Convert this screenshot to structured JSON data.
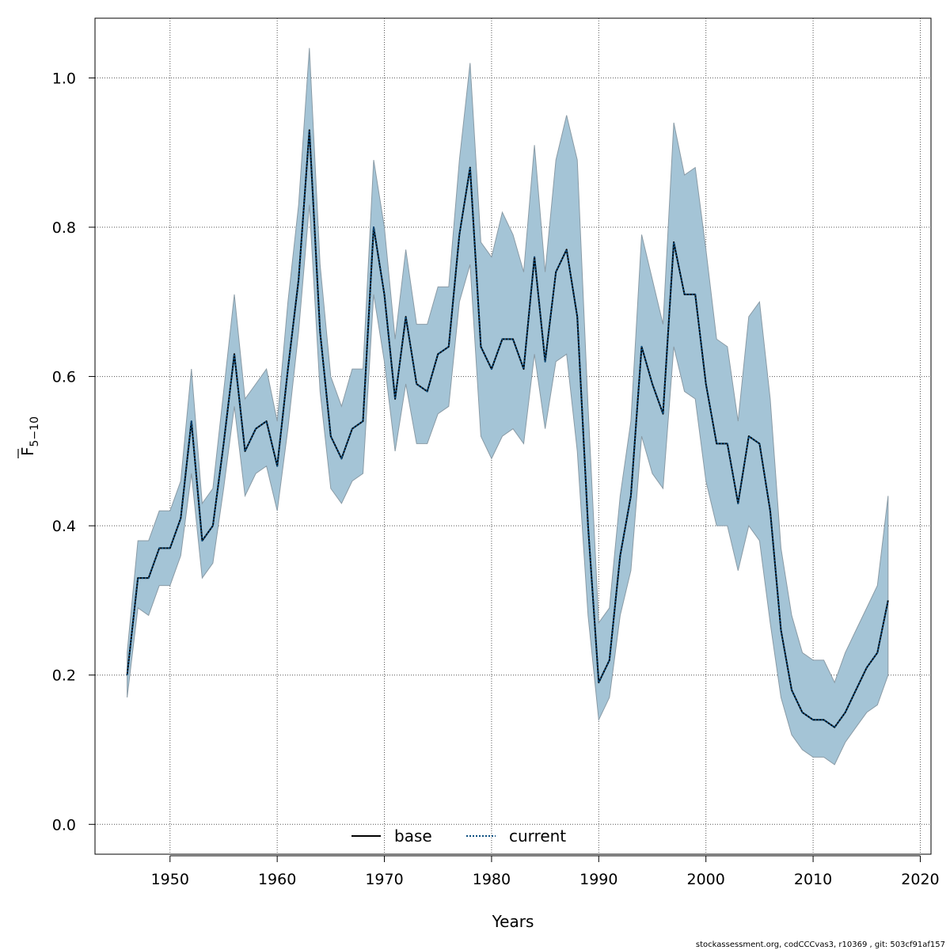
{
  "chart_data": {
    "type": "line",
    "xlabel": "Years",
    "ylabel_main": "F",
    "ylabel_subscript": "5−10",
    "xlim": [
      1943,
      2021
    ],
    "ylim": [
      -0.04,
      1.08
    ],
    "xticks": [
      1950,
      1960,
      1970,
      1980,
      1990,
      2000,
      2010,
      2020
    ],
    "xtick_labels": [
      "1950",
      "1960",
      "1970",
      "1980",
      "1990",
      "2000",
      "2010",
      "2020"
    ],
    "yticks": [
      0.0,
      0.2,
      0.4,
      0.6,
      0.8,
      1.0
    ],
    "ytick_labels": [
      "0.0",
      "0.2",
      "0.4",
      "0.6",
      "0.8",
      "1.0"
    ],
    "grid": true,
    "legend_position": "bottom-center",
    "colors": {
      "band_fill": "#a4c4d6",
      "band_stroke": "#8a9ba6",
      "base_line": "#000000",
      "current_line": "#0a4d80",
      "grid": "#555555"
    },
    "years": [
      1946,
      1947,
      1948,
      1949,
      1950,
      1951,
      1952,
      1953,
      1954,
      1955,
      1956,
      1957,
      1958,
      1959,
      1960,
      1961,
      1962,
      1963,
      1964,
      1965,
      1966,
      1967,
      1968,
      1969,
      1970,
      1971,
      1972,
      1973,
      1974,
      1975,
      1976,
      1977,
      1978,
      1979,
      1980,
      1981,
      1982,
      1983,
      1984,
      1985,
      1986,
      1987,
      1988,
      1989,
      1990,
      1991,
      1992,
      1993,
      1994,
      1995,
      1996,
      1997,
      1998,
      1999,
      2000,
      2001,
      2002,
      2003,
      2004,
      2005,
      2006,
      2007,
      2008,
      2009,
      2010,
      2011,
      2012,
      2013,
      2014,
      2015,
      2016,
      2017
    ],
    "series": [
      {
        "name": "base",
        "style": "solid",
        "values": [
          0.2,
          0.33,
          0.33,
          0.37,
          0.37,
          0.41,
          0.54,
          0.38,
          0.4,
          0.51,
          0.63,
          0.5,
          0.53,
          0.54,
          0.48,
          0.61,
          0.73,
          0.93,
          0.66,
          0.52,
          0.49,
          0.53,
          0.54,
          0.8,
          0.71,
          0.57,
          0.68,
          0.59,
          0.58,
          0.63,
          0.64,
          0.79,
          0.88,
          0.64,
          0.61,
          0.65,
          0.65,
          0.61,
          0.76,
          0.62,
          0.74,
          0.77,
          0.68,
          0.4,
          0.19,
          0.22,
          0.36,
          0.44,
          0.64,
          0.59,
          0.55,
          0.78,
          0.71,
          0.71,
          0.59,
          0.51,
          0.51,
          0.43,
          0.52,
          0.51,
          0.42,
          0.26,
          0.18,
          0.15,
          0.14,
          0.14,
          0.13,
          0.15,
          0.18,
          0.21,
          0.23,
          0.3
        ]
      },
      {
        "name": "current",
        "style": "dotted",
        "values": [
          0.2,
          0.33,
          0.33,
          0.37,
          0.37,
          0.41,
          0.54,
          0.38,
          0.4,
          0.51,
          0.63,
          0.5,
          0.53,
          0.54,
          0.48,
          0.61,
          0.73,
          0.93,
          0.66,
          0.52,
          0.49,
          0.53,
          0.54,
          0.8,
          0.71,
          0.57,
          0.68,
          0.59,
          0.58,
          0.63,
          0.64,
          0.79,
          0.88,
          0.64,
          0.61,
          0.65,
          0.65,
          0.61,
          0.76,
          0.62,
          0.74,
          0.77,
          0.68,
          0.4,
          0.19,
          0.22,
          0.36,
          0.44,
          0.64,
          0.59,
          0.55,
          0.78,
          0.71,
          0.71,
          0.59,
          0.51,
          0.51,
          0.43,
          0.52,
          0.51,
          0.42,
          0.26,
          0.18,
          0.15,
          0.14,
          0.14,
          0.13,
          0.15,
          0.18,
          0.21,
          0.23,
          0.3
        ]
      }
    ],
    "band": {
      "lower": [
        0.17,
        0.29,
        0.28,
        0.32,
        0.32,
        0.36,
        0.47,
        0.33,
        0.35,
        0.45,
        0.56,
        0.44,
        0.47,
        0.48,
        0.42,
        0.53,
        0.66,
        0.83,
        0.58,
        0.45,
        0.43,
        0.46,
        0.47,
        0.71,
        0.62,
        0.5,
        0.59,
        0.51,
        0.51,
        0.55,
        0.56,
        0.7,
        0.75,
        0.52,
        0.49,
        0.52,
        0.53,
        0.51,
        0.63,
        0.53,
        0.62,
        0.63,
        0.5,
        0.28,
        0.14,
        0.17,
        0.28,
        0.34,
        0.52,
        0.47,
        0.45,
        0.64,
        0.58,
        0.57,
        0.46,
        0.4,
        0.4,
        0.34,
        0.4,
        0.38,
        0.27,
        0.17,
        0.12,
        0.1,
        0.09,
        0.09,
        0.08,
        0.11,
        0.13,
        0.15,
        0.16,
        0.2
      ],
      "upper": [
        0.23,
        0.38,
        0.38,
        0.42,
        0.42,
        0.46,
        0.61,
        0.43,
        0.45,
        0.58,
        0.71,
        0.57,
        0.59,
        0.61,
        0.54,
        0.7,
        0.83,
        1.04,
        0.75,
        0.6,
        0.56,
        0.61,
        0.61,
        0.89,
        0.8,
        0.65,
        0.77,
        0.67,
        0.67,
        0.72,
        0.72,
        0.89,
        1.02,
        0.78,
        0.76,
        0.82,
        0.79,
        0.74,
        0.91,
        0.74,
        0.89,
        0.95,
        0.89,
        0.56,
        0.27,
        0.29,
        0.44,
        0.54,
        0.79,
        0.73,
        0.67,
        0.94,
        0.87,
        0.88,
        0.77,
        0.65,
        0.64,
        0.54,
        0.68,
        0.7,
        0.57,
        0.37,
        0.28,
        0.23,
        0.22,
        0.22,
        0.19,
        0.23,
        0.26,
        0.29,
        0.32,
        0.44
      ]
    }
  },
  "footer": {
    "credit": "stockassessment.org, codCCCvas3, r10369 , git: 503cf91af157"
  }
}
